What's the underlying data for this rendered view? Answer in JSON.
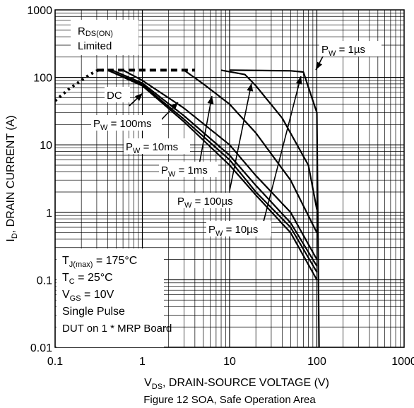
{
  "chart_data": {
    "type": "line",
    "x_scale": "log",
    "y_scale": "log",
    "xlim": [
      0.1,
      1000
    ],
    "ylim": [
      0.01,
      1000
    ],
    "grid": true,
    "x_ticks": [
      "0.1",
      "1",
      "10",
      "100",
      "1000"
    ],
    "y_ticks": [
      "1000",
      "100",
      "10",
      "1",
      "0.1",
      "0.01"
    ],
    "xlabel": {
      "main": "V",
      "sub": "DS",
      "rest": ", DRAIN-SOURCE VOLTAGE (V)"
    },
    "ylabel": {
      "main": "I",
      "sub": "D",
      "rest": ", DRAIN CURRENT (A)"
    },
    "caption": "Figure 12 SOA, Safe Operation Area",
    "rds_box": {
      "line1_main": "R",
      "line1_sub": "DS(ON)",
      "line2": "Limited"
    },
    "conditions": [
      {
        "main": "T",
        "sub": "J(max)",
        "rest": " = 175°C"
      },
      {
        "main": "T",
        "sub": "C",
        "rest": " = 25°C"
      },
      {
        "main": "V",
        "sub": "GS",
        "rest": " = 10V"
      },
      {
        "main": "Single Pulse",
        "sub": "",
        "rest": ""
      },
      {
        "main": "DUT on 1 * MRP Board",
        "sub": "",
        "rest": ""
      }
    ],
    "rds_limit": {
      "x": [
        0.1,
        0.12,
        0.15,
        0.2,
        0.25,
        0.3,
        0.35,
        0.4
      ],
      "y": [
        45,
        55,
        70,
        90,
        110,
        125,
        128,
        128
      ],
      "style": "dotted"
    },
    "current_limit": {
      "x": [
        0.3,
        4
      ],
      "y": [
        128,
        128
      ],
      "style": "dashed"
    },
    "series": [
      {
        "name": "DC",
        "main": "DC",
        "sub": "",
        "rest": "",
        "x": [
          0.4,
          1,
          3,
          10,
          20,
          50,
          100
        ],
        "y": [
          128,
          75,
          22,
          5,
          1.8,
          0.5,
          0.1
        ]
      },
      {
        "name": "P_W = 100ms",
        "main": "P",
        "sub": "W",
        "rest": " = 100ms",
        "x": [
          0.4,
          1,
          3,
          10,
          20,
          50,
          100
        ],
        "y": [
          128,
          78,
          24,
          6,
          2,
          0.6,
          0.13
        ]
      },
      {
        "name": "P_W = 10ms",
        "main": "P",
        "sub": "W",
        "rest": " = 10ms",
        "x": [
          0.45,
          1,
          3,
          10,
          20,
          50,
          100
        ],
        "y": [
          128,
          82,
          27,
          7,
          2.5,
          0.7,
          0.16
        ]
      },
      {
        "name": "P_W = 1ms",
        "main": "P",
        "sub": "W",
        "rest": " = 1ms",
        "x": [
          0.6,
          1,
          3,
          10,
          20,
          50,
          100
        ],
        "y": [
          128,
          90,
          35,
          10,
          3.5,
          1,
          0.2
        ]
      },
      {
        "name": "P_W = 100µs",
        "main": "P",
        "sub": "W",
        "rest": " = 100µs",
        "x": [
          3,
          5,
          10,
          20,
          50,
          100
        ],
        "y": [
          128,
          80,
          40,
          15,
          3,
          0.5
        ]
      },
      {
        "name": "P_W = 10µs",
        "main": "P",
        "sub": "W",
        "rest": " = 10µs",
        "x": [
          8,
          15,
          20,
          40,
          80,
          100
        ],
        "y": [
          128,
          110,
          75,
          25,
          5,
          1.1
        ]
      },
      {
        "name": "P_W = 1µs",
        "main": "P",
        "sub": "W",
        "rest": " = 1µs",
        "x": [
          10,
          50,
          70,
          100,
          106
        ],
        "y": [
          128,
          125,
          120,
          30,
          0.01
        ]
      }
    ]
  }
}
